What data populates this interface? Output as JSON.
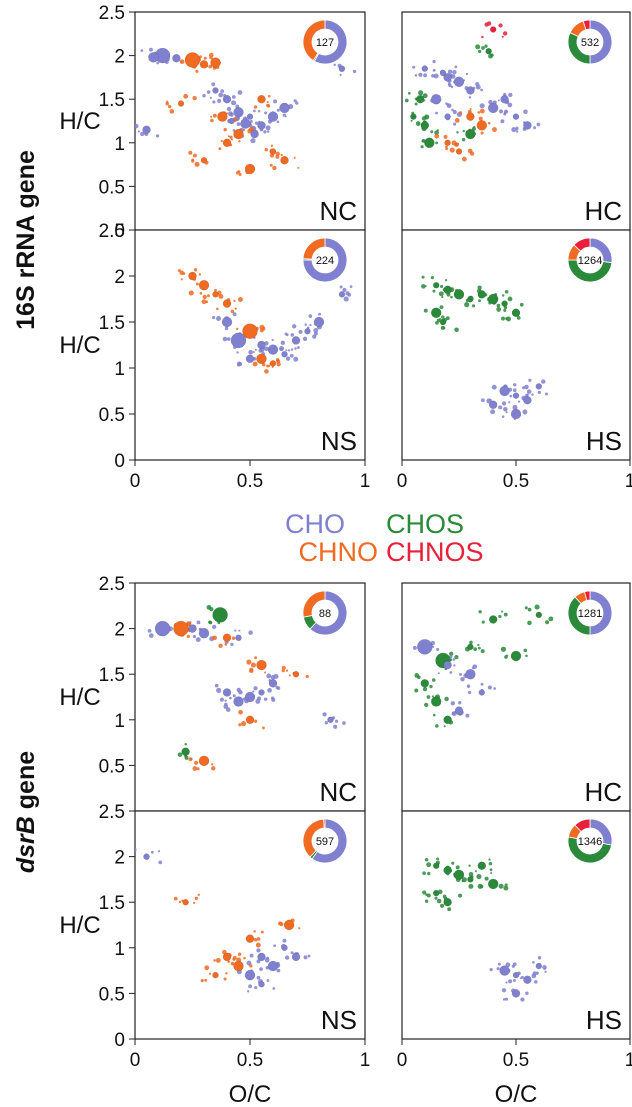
{
  "colors": {
    "CHO": "#8080d0",
    "CHOS": "#2a8a3a",
    "CHNO": "#f06a22",
    "CHNOS": "#e8203a"
  },
  "legend": {
    "row1": [
      "CHO",
      "CHOS"
    ],
    "row2": [
      "CHNO",
      "CHNOS"
    ]
  },
  "groups": [
    {
      "label": "16S rRNA gene"
    },
    {
      "label": "dsrB gene",
      "label_part1": "dsrB",
      "label_part2": " gene"
    }
  ],
  "y_axis_label": "H/C",
  "x_axis_label": "O/C",
  "chart_data": [
    {
      "id": "16S-NC",
      "type": "scatter",
      "title": "NC",
      "group": "16S rRNA gene",
      "total": 127,
      "composition": {
        "CHO": 0.58,
        "CHOS": 0.01,
        "CHNO": 0.41,
        "CHNOS": 0.0
      },
      "xlim": [
        0,
        1
      ],
      "ylim": [
        0,
        2.5
      ],
      "x_ticks": [
        "0",
        "0.5",
        "1"
      ],
      "y_ticks": [
        "0",
        "0.5",
        "1",
        "1.5",
        "2",
        "2.5"
      ],
      "series": [
        {
          "name": "CHO",
          "points": [
            [
              0.12,
              2.0
            ],
            [
              0.18,
              1.97
            ],
            [
              0.08,
              1.98
            ],
            [
              0.9,
              1.85
            ],
            [
              0.4,
              1.5
            ],
            [
              0.45,
              1.35
            ],
            [
              0.5,
              1.3
            ],
            [
              0.55,
              1.2
            ],
            [
              0.48,
              1.22
            ],
            [
              0.42,
              1.25
            ],
            [
              0.52,
              1.1
            ],
            [
              0.6,
              1.3
            ],
            [
              0.35,
              1.6
            ],
            [
              0.05,
              1.15
            ],
            [
              0.65,
              1.4
            ]
          ]
        },
        {
          "name": "CHNO",
          "points": [
            [
              0.25,
              1.95
            ],
            [
              0.3,
              1.9
            ],
            [
              0.35,
              1.92
            ],
            [
              0.2,
              1.45
            ],
            [
              0.4,
              1.0
            ],
            [
              0.5,
              0.7
            ],
            [
              0.6,
              0.9
            ],
            [
              0.55,
              1.5
            ],
            [
              0.45,
              1.1
            ],
            [
              0.3,
              0.8
            ],
            [
              0.65,
              0.8
            ],
            [
              0.38,
              1.3
            ]
          ]
        }
      ]
    },
    {
      "id": "16S-HC",
      "type": "scatter",
      "title": "HC",
      "group": "16S rRNA gene",
      "total": 532,
      "composition": {
        "CHO": 0.5,
        "CHOS": 0.32,
        "CHNO": 0.13,
        "CHNOS": 0.05
      },
      "xlim": [
        0,
        1
      ],
      "ylim": [
        0,
        2.5
      ],
      "x_ticks": [
        "0",
        "0.5",
        "1"
      ],
      "y_ticks": [
        "0",
        "0.5",
        "1",
        "1.5",
        "2",
        "2.5"
      ],
      "series": [
        {
          "name": "CHO",
          "points": [
            [
              0.18,
              1.8
            ],
            [
              0.2,
              1.75
            ],
            [
              0.25,
              1.7
            ],
            [
              0.1,
              1.85
            ],
            [
              0.3,
              1.6
            ],
            [
              0.4,
              1.4
            ],
            [
              0.5,
              1.3
            ],
            [
              0.55,
              1.2
            ],
            [
              0.15,
              1.5
            ],
            [
              0.2,
              1.3
            ],
            [
              0.45,
              1.5
            ]
          ]
        },
        {
          "name": "CHOS",
          "points": [
            [
              0.38,
              2.05
            ],
            [
              0.1,
              1.2
            ],
            [
              0.12,
              1.0
            ],
            [
              0.05,
              1.3
            ],
            [
              0.08,
              1.5
            ],
            [
              0.3,
              1.1
            ]
          ]
        },
        {
          "name": "CHNO",
          "points": [
            [
              0.2,
              1.0
            ],
            [
              0.3,
              1.3
            ],
            [
              0.35,
              1.2
            ],
            [
              0.25,
              0.9
            ]
          ]
        },
        {
          "name": "CHNOS",
          "points": [
            [
              0.4,
              2.3
            ]
          ]
        }
      ]
    },
    {
      "id": "16S-NS",
      "type": "scatter",
      "title": "NS",
      "group": "16S rRNA gene",
      "total": 224,
      "composition": {
        "CHO": 0.75,
        "CHOS": 0.01,
        "CHNO": 0.24,
        "CHNOS": 0.0
      },
      "xlim": [
        0,
        1
      ],
      "ylim": [
        0,
        2.5
      ],
      "x_ticks": [
        "0",
        "0.5",
        "1"
      ],
      "y_ticks": [
        "0",
        "0.5",
        "1",
        "1.5",
        "2",
        "2.5"
      ],
      "series": [
        {
          "name": "CHO",
          "points": [
            [
              0.45,
              1.3
            ],
            [
              0.55,
              1.25
            ],
            [
              0.6,
              1.2
            ],
            [
              0.65,
              1.15
            ],
            [
              0.7,
              1.3
            ],
            [
              0.8,
              1.5
            ],
            [
              0.9,
              1.8
            ],
            [
              0.5,
              1.1
            ],
            [
              0.4,
              1.5
            ],
            [
              0.75,
              1.4
            ]
          ]
        },
        {
          "name": "CHNO",
          "points": [
            [
              0.5,
              1.4
            ],
            [
              0.25,
              2.0
            ],
            [
              0.3,
              1.9
            ],
            [
              0.35,
              1.8
            ],
            [
              0.4,
              1.7
            ],
            [
              0.55,
              1.1
            ],
            [
              0.6,
              1.05
            ]
          ]
        }
      ]
    },
    {
      "id": "16S-HS",
      "type": "scatter",
      "title": "HS",
      "group": "16S rRNA gene",
      "total": 1264,
      "composition": {
        "CHO": 0.27,
        "CHOS": 0.48,
        "CHNO": 0.12,
        "CHNOS": 0.13
      },
      "xlim": [
        0,
        1
      ],
      "ylim": [
        0,
        2.5
      ],
      "x_ticks": [
        "0",
        "0.5",
        "1"
      ],
      "y_ticks": [
        "0",
        "0.5",
        "1",
        "1.5",
        "2",
        "2.5"
      ],
      "series": [
        {
          "name": "CHOS",
          "points": [
            [
              0.15,
              1.9
            ],
            [
              0.2,
              1.85
            ],
            [
              0.25,
              1.8
            ],
            [
              0.3,
              1.75
            ],
            [
              0.35,
              1.8
            ],
            [
              0.4,
              1.75
            ],
            [
              0.45,
              1.7
            ],
            [
              0.5,
              1.6
            ],
            [
              0.15,
              1.6
            ],
            [
              0.18,
              1.5
            ]
          ]
        },
        {
          "name": "CHO",
          "points": [
            [
              0.5,
              0.7
            ],
            [
              0.55,
              0.65
            ],
            [
              0.45,
              0.75
            ],
            [
              0.6,
              0.8
            ],
            [
              0.4,
              0.6
            ],
            [
              0.5,
              0.5
            ]
          ]
        }
      ]
    },
    {
      "id": "dsrB-NC",
      "type": "scatter",
      "title": "NC",
      "group": "dsrB gene",
      "total": 88,
      "composition": {
        "CHO": 0.62,
        "CHOS": 0.1,
        "CHNO": 0.28,
        "CHNOS": 0.0
      },
      "xlim": [
        0,
        1
      ],
      "ylim": [
        0,
        2.5
      ],
      "x_ticks": [
        "0",
        "0.5",
        "1"
      ],
      "y_ticks": [
        "0.5",
        "1",
        "1.5",
        "2",
        "2.5"
      ],
      "series": [
        {
          "name": "CHO",
          "points": [
            [
              0.12,
              2.0
            ],
            [
              0.25,
              2.0
            ],
            [
              0.3,
              1.95
            ],
            [
              0.45,
              1.9
            ],
            [
              0.4,
              1.3
            ],
            [
              0.5,
              1.25
            ],
            [
              0.55,
              1.3
            ],
            [
              0.6,
              1.4
            ],
            [
              0.45,
              1.2
            ],
            [
              0.85,
              1.0
            ]
          ]
        },
        {
          "name": "CHOS",
          "points": [
            [
              0.37,
              2.15
            ],
            [
              0.22,
              0.65
            ]
          ]
        },
        {
          "name": "CHNO",
          "points": [
            [
              0.2,
              2.0
            ],
            [
              0.4,
              1.9
            ],
            [
              0.55,
              1.6
            ],
            [
              0.7,
              1.5
            ],
            [
              0.5,
              1.0
            ],
            [
              0.3,
              0.55
            ]
          ]
        }
      ]
    },
    {
      "id": "dsrB-HC",
      "type": "scatter",
      "title": "HC",
      "group": "dsrB gene",
      "total": 1281,
      "composition": {
        "CHO": 0.5,
        "CHOS": 0.38,
        "CHNO": 0.08,
        "CHNOS": 0.04
      },
      "xlim": [
        0,
        1
      ],
      "ylim": [
        0,
        2.5
      ],
      "x_ticks": [
        "0",
        "0.5",
        "1"
      ],
      "y_ticks": [
        "0.5",
        "1",
        "1.5",
        "2",
        "2.5"
      ],
      "series": [
        {
          "name": "CHOS",
          "points": [
            [
              0.18,
              1.65
            ],
            [
              0.1,
              1.4
            ],
            [
              0.15,
              1.2
            ],
            [
              0.3,
              1.8
            ],
            [
              0.4,
              2.1
            ],
            [
              0.5,
              1.7
            ],
            [
              0.6,
              2.15
            ],
            [
              0.2,
              1.0
            ]
          ]
        },
        {
          "name": "CHO",
          "points": [
            [
              0.1,
              1.8
            ],
            [
              0.2,
              1.6
            ],
            [
              0.3,
              1.5
            ],
            [
              0.35,
              1.3
            ],
            [
              0.25,
              1.1
            ]
          ]
        }
      ]
    },
    {
      "id": "dsrB-NS",
      "type": "scatter",
      "title": "NS",
      "group": "dsrB gene",
      "total": 597,
      "composition": {
        "CHO": 0.6,
        "CHOS": 0.02,
        "CHNO": 0.37,
        "CHNOS": 0.01
      },
      "xlim": [
        0,
        1
      ],
      "ylim": [
        0,
        2.5
      ],
      "x_ticks": [
        "0",
        "0.5",
        "1"
      ],
      "y_ticks": [
        "0",
        "0.5",
        "1",
        "1.5",
        "2",
        "2.5"
      ],
      "series": [
        {
          "name": "CHO",
          "points": [
            [
              0.05,
              2.0
            ],
            [
              0.55,
              0.9
            ],
            [
              0.6,
              0.8
            ],
            [
              0.65,
              1.0
            ],
            [
              0.7,
              0.9
            ],
            [
              0.5,
              0.7
            ],
            [
              0.55,
              0.6
            ]
          ]
        },
        {
          "name": "CHNO",
          "points": [
            [
              0.22,
              1.5
            ],
            [
              0.4,
              0.9
            ],
            [
              0.45,
              0.8
            ],
            [
              0.35,
              0.7
            ],
            [
              0.5,
              1.1
            ],
            [
              0.67,
              1.25
            ]
          ]
        }
      ]
    },
    {
      "id": "dsrB-HS",
      "type": "scatter",
      "title": "HS",
      "group": "dsrB gene",
      "total": 1346,
      "composition": {
        "CHO": 0.28,
        "CHOS": 0.5,
        "CHNO": 0.1,
        "CHNOS": 0.12
      },
      "xlim": [
        0,
        1
      ],
      "ylim": [
        0,
        2.5
      ],
      "x_ticks": [
        "0",
        "0.5",
        "1"
      ],
      "y_ticks": [
        "0",
        "0.5",
        "1",
        "1.5",
        "2",
        "2.5"
      ],
      "series": [
        {
          "name": "CHOS",
          "points": [
            [
              0.15,
              1.9
            ],
            [
              0.2,
              1.85
            ],
            [
              0.25,
              1.8
            ],
            [
              0.3,
              1.75
            ],
            [
              0.35,
              1.9
            ],
            [
              0.4,
              1.7
            ],
            [
              0.15,
              1.6
            ],
            [
              0.2,
              1.5
            ]
          ]
        },
        {
          "name": "CHO",
          "points": [
            [
              0.5,
              0.7
            ],
            [
              0.55,
              0.65
            ],
            [
              0.45,
              0.75
            ],
            [
              0.6,
              0.8
            ],
            [
              0.5,
              0.5
            ]
          ]
        }
      ]
    }
  ]
}
